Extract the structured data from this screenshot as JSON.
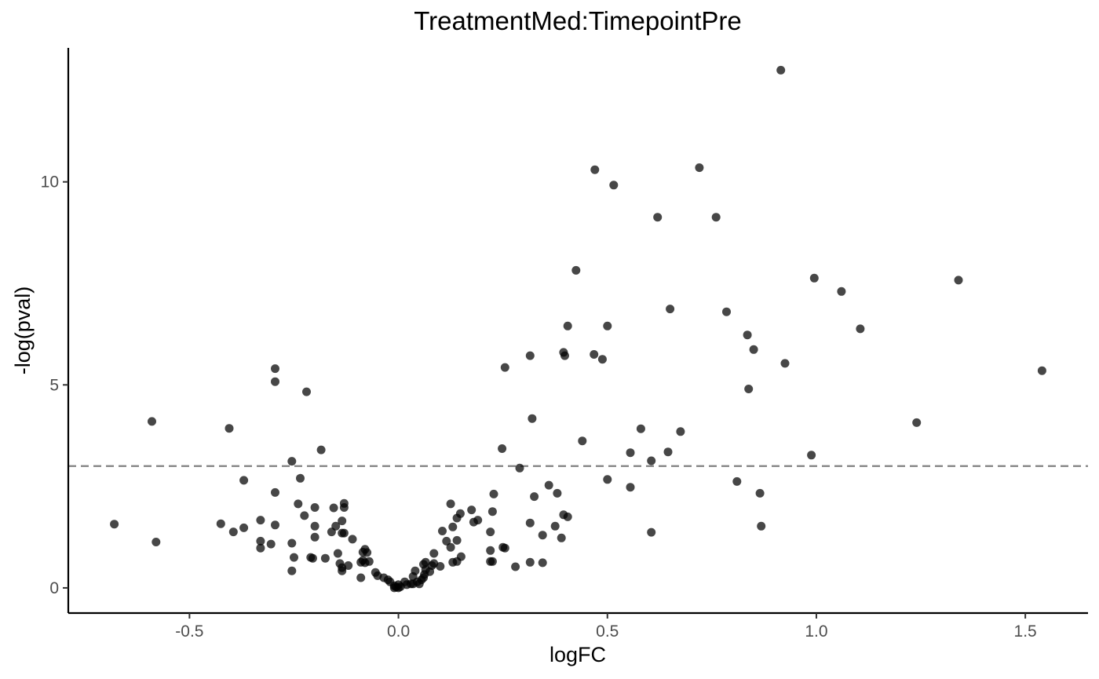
{
  "chart_data": {
    "type": "scatter",
    "title": "TreatmentMed:TimepointPre",
    "xlabel": "logFC",
    "ylabel": "-log(pval)",
    "xlim": [
      -0.79,
      1.65
    ],
    "ylim": [
      -0.62,
      13.3
    ],
    "xticks": [
      -0.5,
      0.0,
      0.5,
      1.0,
      1.5
    ],
    "xtick_labels": [
      "-0.5",
      "0.0",
      "0.5",
      "1.0",
      "1.5"
    ],
    "yticks": [
      0,
      5,
      10
    ],
    "ytick_labels": [
      "0",
      "5",
      "10"
    ],
    "threshold_y": 3.0,
    "grid": false,
    "legend": "none",
    "point_color": "#333333",
    "threshold_color": "#808080",
    "points": [
      [
        0.915,
        12.75
      ],
      [
        0.47,
        10.3
      ],
      [
        0.72,
        10.35
      ],
      [
        0.515,
        9.92
      ],
      [
        0.62,
        9.13
      ],
      [
        0.76,
        9.13
      ],
      [
        0.425,
        7.82
      ],
      [
        0.995,
        7.63
      ],
      [
        1.34,
        7.58
      ],
      [
        1.06,
        7.3
      ],
      [
        0.65,
        6.87
      ],
      [
        0.785,
        6.8
      ],
      [
        0.405,
        6.45
      ],
      [
        0.5,
        6.45
      ],
      [
        1.105,
        6.38
      ],
      [
        0.835,
        6.23
      ],
      [
        0.85,
        5.87
      ],
      [
        0.395,
        5.8
      ],
      [
        0.398,
        5.72
      ],
      [
        0.468,
        5.75
      ],
      [
        0.315,
        5.72
      ],
      [
        0.488,
        5.63
      ],
      [
        0.925,
        5.53
      ],
      [
        0.255,
        5.43
      ],
      [
        1.54,
        5.35
      ],
      [
        0.838,
        4.9
      ],
      [
        0.32,
        4.17
      ],
      [
        1.24,
        4.07
      ],
      [
        0.58,
        3.92
      ],
      [
        0.675,
        3.85
      ],
      [
        0.44,
        3.62
      ],
      [
        0.248,
        3.43
      ],
      [
        0.555,
        3.33
      ],
      [
        0.645,
        3.35
      ],
      [
        0.988,
        3.27
      ],
      [
        0.605,
        3.13
      ],
      [
        0.29,
        2.95
      ],
      [
        0.81,
        2.62
      ],
      [
        0.5,
        2.67
      ],
      [
        0.36,
        2.53
      ],
      [
        0.555,
        2.48
      ],
      [
        0.38,
        2.33
      ],
      [
        0.865,
        2.33
      ],
      [
        0.325,
        2.25
      ],
      [
        0.228,
        2.31
      ],
      [
        0.125,
        2.07
      ],
      [
        0.175,
        1.92
      ],
      [
        0.225,
        1.88
      ],
      [
        0.148,
        1.83
      ],
      [
        0.395,
        1.8
      ],
      [
        0.405,
        1.75
      ],
      [
        0.14,
        1.72
      ],
      [
        0.19,
        1.67
      ],
      [
        0.18,
        1.62
      ],
      [
        0.315,
        1.6
      ],
      [
        0.375,
        1.52
      ],
      [
        0.13,
        1.5
      ],
      [
        0.868,
        1.52
      ],
      [
        0.22,
        1.38
      ],
      [
        0.105,
        1.4
      ],
      [
        0.345,
        1.3
      ],
      [
        0.605,
        1.37
      ],
      [
        0.39,
        1.23
      ],
      [
        0.14,
        1.17
      ],
      [
        0.115,
        1.15
      ],
      [
        0.125,
        1.0
      ],
      [
        0.25,
        1.0
      ],
      [
        0.255,
        0.98
      ],
      [
        0.22,
        0.92
      ],
      [
        0.085,
        0.85
      ],
      [
        0.15,
        0.77
      ],
      [
        0.225,
        0.65
      ],
      [
        0.22,
        0.65
      ],
      [
        0.13,
        0.63
      ],
      [
        0.14,
        0.65
      ],
      [
        0.1,
        0.53
      ],
      [
        0.085,
        0.6
      ],
      [
        0.315,
        0.63
      ],
      [
        0.345,
        0.62
      ],
      [
        0.28,
        0.52
      ],
      [
        0.065,
        0.63
      ],
      [
        0.06,
        0.58
      ],
      [
        0.08,
        0.55
      ],
      [
        0.065,
        0.45
      ],
      [
        0.04,
        0.42
      ],
      [
        0.075,
        0.4
      ],
      [
        0.062,
        0.33
      ],
      [
        0.035,
        0.28
      ],
      [
        0.06,
        0.25
      ],
      [
        0.055,
        0.2
      ],
      [
        0.045,
        0.15
      ],
      [
        0.015,
        0.15
      ],
      [
        0.05,
        0.1
      ],
      [
        0.03,
        0.1
      ],
      [
        0.035,
        0.1
      ],
      [
        0.02,
        0.08
      ],
      [
        0.0,
        0.08
      ],
      [
        -0.01,
        0.05
      ],
      [
        0.005,
        0.03
      ],
      [
        -0.01,
        0.0
      ],
      [
        -0.005,
        0.02
      ],
      [
        0.0,
        0.0
      ],
      [
        -0.02,
        0.15
      ],
      [
        -0.025,
        0.2
      ],
      [
        -0.035,
        0.25
      ],
      [
        -0.05,
        0.3
      ],
      [
        -0.055,
        0.38
      ],
      [
        -0.07,
        0.65
      ],
      [
        -0.08,
        0.62
      ],
      [
        -0.085,
        0.68
      ],
      [
        -0.09,
        0.25
      ],
      [
        -0.075,
        0.87
      ],
      [
        -0.08,
        0.95
      ],
      [
        -0.085,
        0.88
      ],
      [
        -0.09,
        0.63
      ],
      [
        -0.11,
        1.2
      ],
      [
        -0.12,
        0.55
      ],
      [
        -0.135,
        0.42
      ],
      [
        -0.135,
        0.5
      ],
      [
        -0.14,
        0.6
      ],
      [
        -0.145,
        0.85
      ],
      [
        -0.13,
        1.35
      ],
      [
        -0.135,
        1.35
      ],
      [
        -0.135,
        1.65
      ],
      [
        -0.13,
        1.98
      ],
      [
        -0.13,
        2.08
      ],
      [
        -0.155,
        1.97
      ],
      [
        -0.15,
        1.52
      ],
      [
        -0.16,
        1.38
      ],
      [
        -0.175,
        0.73
      ],
      [
        -0.21,
        0.75
      ],
      [
        -0.205,
        0.73
      ],
      [
        -0.2,
        1.25
      ],
      [
        -0.2,
        1.52
      ],
      [
        -0.2,
        1.98
      ],
      [
        -0.225,
        1.78
      ],
      [
        -0.24,
        2.07
      ],
      [
        -0.235,
        2.7
      ],
      [
        -0.255,
        3.12
      ],
      [
        -0.255,
        1.1
      ],
      [
        -0.25,
        0.75
      ],
      [
        -0.255,
        0.42
      ],
      [
        -0.185,
        3.4
      ],
      [
        -0.22,
        4.83
      ],
      [
        -0.295,
        5.08
      ],
      [
        -0.295,
        5.4
      ],
      [
        -0.295,
        2.35
      ],
      [
        -0.295,
        1.55
      ],
      [
        -0.305,
        1.08
      ],
      [
        -0.33,
        1.15
      ],
      [
        -0.33,
        0.98
      ],
      [
        -0.33,
        1.67
      ],
      [
        -0.37,
        1.48
      ],
      [
        -0.37,
        2.65
      ],
      [
        -0.395,
        1.38
      ],
      [
        -0.425,
        1.58
      ],
      [
        -0.405,
        3.93
      ],
      [
        -0.59,
        4.1
      ],
      [
        -0.58,
        1.13
      ],
      [
        -0.68,
        1.57
      ]
    ]
  }
}
